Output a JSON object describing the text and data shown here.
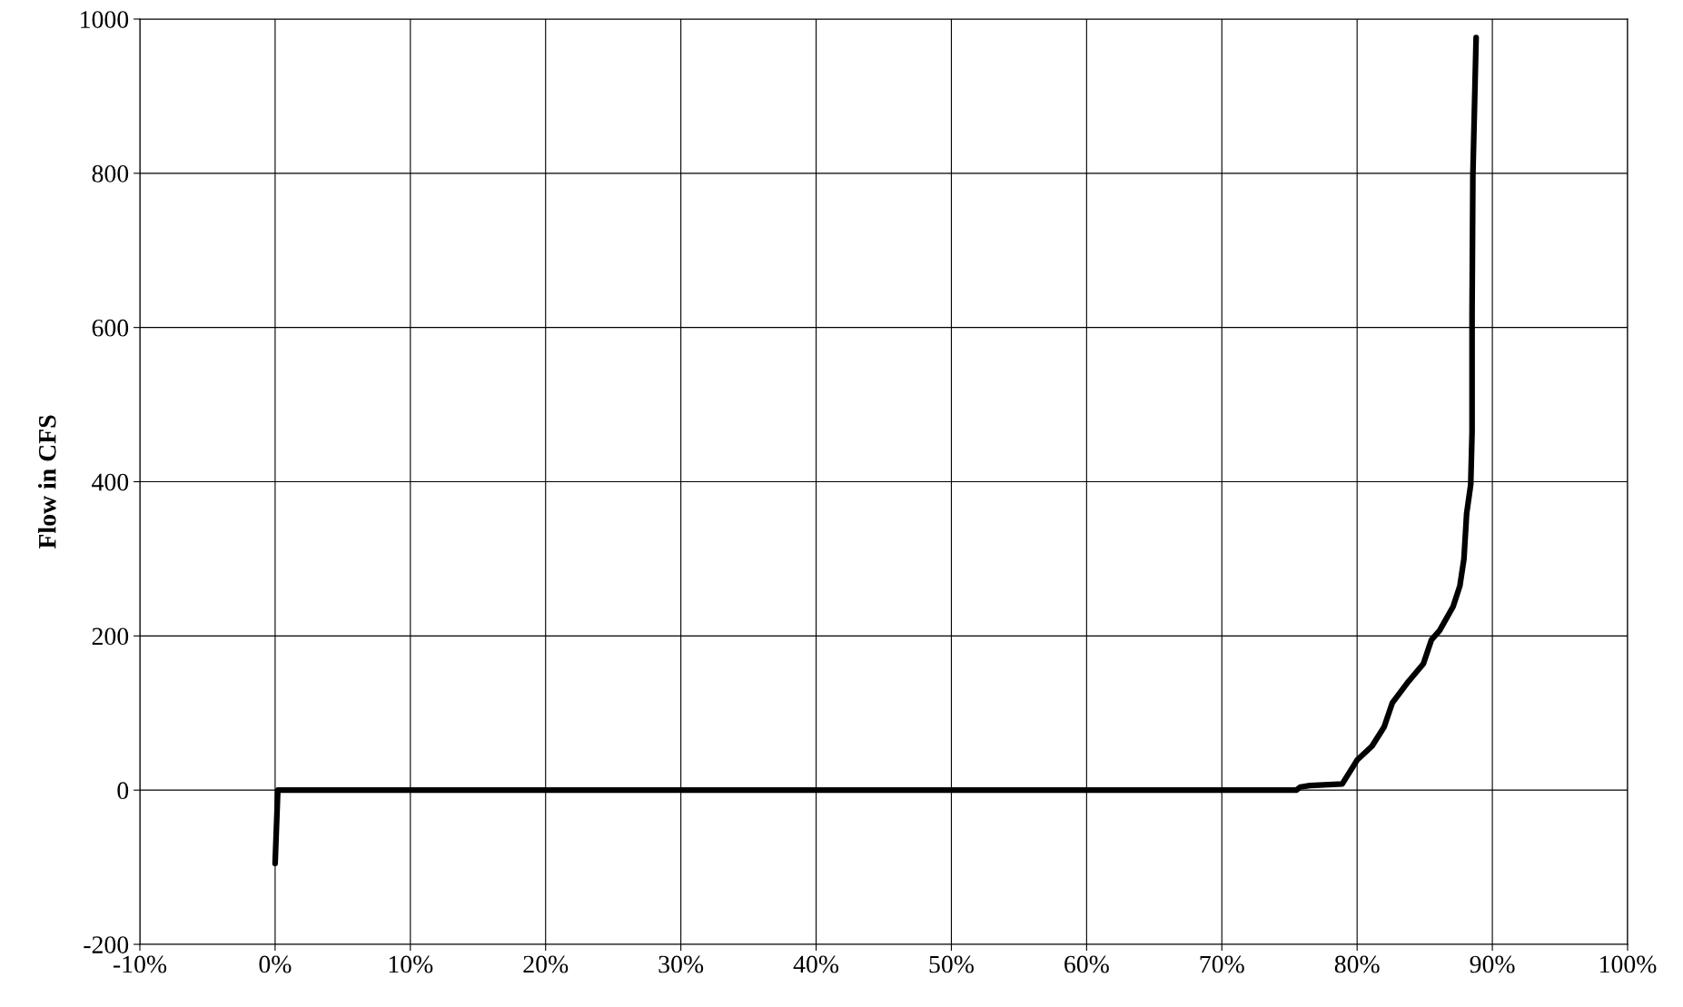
{
  "chart_data": {
    "type": "line",
    "ylabel": "Flow in CFS",
    "x": [
      0,
      0.2,
      10,
      30,
      50,
      70,
      75.5,
      75.8,
      76.5,
      78.9,
      80,
      81.1,
      82,
      82.6,
      83.8,
      84.9,
      85.5,
      86.1,
      87.1,
      87.6,
      87.9,
      88.1,
      88.4,
      88.5,
      88.5,
      88.56,
      88.8
    ],
    "series": [
      {
        "color": "#000000",
        "values": [
          -95,
          0,
          0,
          0,
          0,
          0,
          0,
          4,
          6,
          8,
          39,
          57,
          82,
          113,
          141,
          164,
          195,
          207,
          238,
          265,
          300,
          359,
          396,
          464,
          617,
          797,
          976
        ]
      }
    ],
    "xlim": [
      -10,
      100
    ],
    "xticks": [
      {
        "value": -10,
        "label": "-10%"
      },
      {
        "value": 0,
        "label": "0%"
      },
      {
        "value": 10,
        "label": "10%"
      },
      {
        "value": 20,
        "label": "20%"
      },
      {
        "value": 30,
        "label": "30%"
      },
      {
        "value": 40,
        "label": "40%"
      },
      {
        "value": 50,
        "label": "50%"
      },
      {
        "value": 60,
        "label": "60%"
      },
      {
        "value": 70,
        "label": "70%"
      },
      {
        "value": 80,
        "label": "80%"
      },
      {
        "value": 90,
        "label": "90%"
      },
      {
        "value": 100,
        "label": "100%"
      }
    ],
    "ylim": [
      -200,
      1000
    ],
    "yticks": [
      -200,
      0,
      200,
      400,
      600,
      800,
      1000
    ],
    "grid": true,
    "marker": "none",
    "line_style": "solid",
    "legend": false
  }
}
